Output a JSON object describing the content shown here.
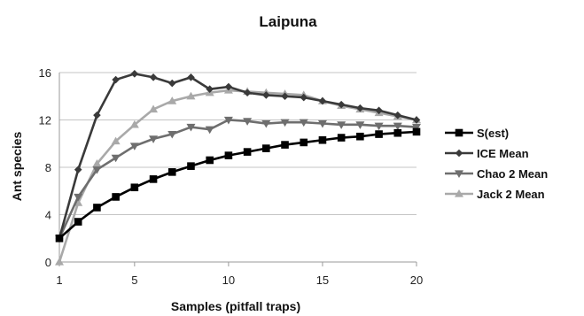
{
  "chart_data": {
    "type": "line",
    "title": "Laipuna",
    "xlabel": "Samples (pitfall traps)",
    "ylabel": "Ant species",
    "xlim": [
      1,
      20
    ],
    "ylim": [
      0,
      16
    ],
    "xticks": [
      "1",
      "5",
      "10",
      "15",
      "20"
    ],
    "yticks": [
      "0",
      "4",
      "8",
      "12",
      "16"
    ],
    "grid": "horizontal",
    "legend_position": "right",
    "x": [
      1,
      2,
      3,
      4,
      5,
      6,
      7,
      8,
      9,
      10,
      11,
      12,
      13,
      14,
      15,
      16,
      17,
      18,
      19,
      20
    ],
    "series": [
      {
        "name": "S(est)",
        "color": "#000000",
        "marker": "square",
        "values": [
          2.0,
          3.4,
          4.6,
          5.5,
          6.3,
          7.0,
          7.6,
          8.1,
          8.6,
          9.0,
          9.3,
          9.6,
          9.9,
          10.1,
          10.3,
          10.5,
          10.6,
          10.8,
          10.9,
          11.0
        ]
      },
      {
        "name": "ICE Mean",
        "color": "#3a3a3a",
        "marker": "diamond",
        "values": [
          2.0,
          7.8,
          12.4,
          15.4,
          15.9,
          15.6,
          15.1,
          15.6,
          14.6,
          14.8,
          14.3,
          14.1,
          14.0,
          13.9,
          13.6,
          13.3,
          13.0,
          12.8,
          12.4,
          12.0
        ]
      },
      {
        "name": "Chao 2 Mean",
        "color": "#6e6e6e",
        "marker": "triangle-down",
        "values": [
          2.0,
          5.5,
          7.8,
          8.8,
          9.8,
          10.4,
          10.8,
          11.4,
          11.2,
          12.0,
          11.9,
          11.7,
          11.8,
          11.8,
          11.7,
          11.6,
          11.6,
          11.5,
          11.5,
          11.4
        ]
      },
      {
        "name": "Jack 2 Mean",
        "color": "#a9a9a9",
        "marker": "triangle-up",
        "values": [
          0.0,
          5.0,
          8.3,
          10.2,
          11.6,
          12.9,
          13.6,
          14.0,
          14.3,
          14.5,
          14.4,
          14.3,
          14.2,
          14.1,
          13.6,
          13.2,
          12.9,
          12.6,
          12.3,
          12.0
        ]
      }
    ]
  }
}
